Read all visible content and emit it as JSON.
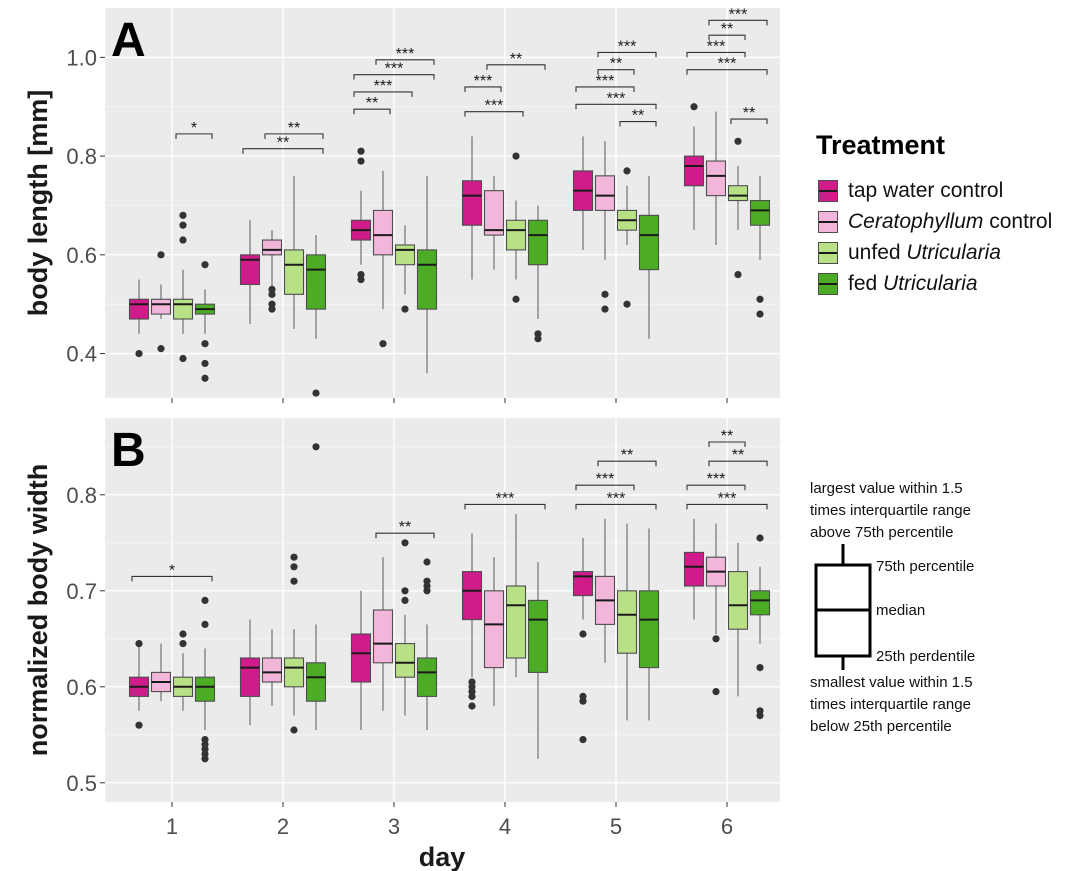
{
  "chart_data": [
    {
      "panel_label": "A",
      "type": "box",
      "ylabel": "body length [mm]",
      "xlabel": "",
      "ylim": [
        0.31,
        1.1
      ],
      "yticks": [
        0.4,
        0.6,
        0.8,
        1.0
      ],
      "ytick_labels": [
        "0.4",
        "0.6",
        "0.8",
        "1.0"
      ],
      "categories": [
        "1",
        "2",
        "3",
        "4",
        "5",
        "6"
      ],
      "grid": true,
      "series": [
        {
          "name": "tap water control",
          "color": "#d01c8b",
          "boxes": [
            {
              "low": 0.44,
              "q1": 0.47,
              "median": 0.5,
              "q3": 0.51,
              "high": 0.55,
              "outliers": [
                0.4
              ]
            },
            {
              "low": 0.46,
              "q1": 0.54,
              "median": 0.59,
              "q3": 0.6,
              "high": 0.67,
              "outliers": []
            },
            {
              "low": 0.58,
              "q1": 0.63,
              "median": 0.65,
              "q3": 0.67,
              "high": 0.73,
              "outliers": [
                0.81,
                0.79,
                0.56,
                0.55
              ]
            },
            {
              "low": 0.55,
              "q1": 0.66,
              "median": 0.72,
              "q3": 0.75,
              "high": 0.84,
              "outliers": []
            },
            {
              "low": 0.61,
              "q1": 0.69,
              "median": 0.73,
              "q3": 0.77,
              "high": 0.84,
              "outliers": []
            },
            {
              "low": 0.65,
              "q1": 0.74,
              "median": 0.78,
              "q3": 0.8,
              "high": 0.86,
              "outliers": [
                0.9
              ]
            }
          ]
        },
        {
          "name": "Ceratophyllum control",
          "color": "#f1b6da",
          "boxes": [
            {
              "low": 0.47,
              "q1": 0.48,
              "median": 0.5,
              "q3": 0.51,
              "high": 0.54,
              "outliers": [
                0.6,
                0.41
              ]
            },
            {
              "low": 0.53,
              "q1": 0.6,
              "median": 0.61,
              "q3": 0.63,
              "high": 0.65,
              "outliers": [
                0.53,
                0.52,
                0.5,
                0.49
              ]
            },
            {
              "low": 0.49,
              "q1": 0.6,
              "median": 0.64,
              "q3": 0.69,
              "high": 0.77,
              "outliers": [
                0.42
              ]
            },
            {
              "low": 0.57,
              "q1": 0.64,
              "median": 0.65,
              "q3": 0.73,
              "high": 0.76,
              "outliers": []
            },
            {
              "low": 0.59,
              "q1": 0.69,
              "median": 0.72,
              "q3": 0.76,
              "high": 0.83,
              "outliers": [
                0.52,
                0.49
              ]
            },
            {
              "low": 0.62,
              "q1": 0.72,
              "median": 0.76,
              "q3": 0.79,
              "high": 0.89,
              "outliers": []
            }
          ]
        },
        {
          "name": "unfed Utricularia",
          "color": "#b8e186",
          "boxes": [
            {
              "low": 0.44,
              "q1": 0.47,
              "median": 0.5,
              "q3": 0.51,
              "high": 0.57,
              "outliers": [
                0.68,
                0.66,
                0.63,
                0.39
              ]
            },
            {
              "low": 0.45,
              "q1": 0.52,
              "median": 0.58,
              "q3": 0.61,
              "high": 0.76,
              "outliers": []
            },
            {
              "low": 0.52,
              "q1": 0.58,
              "median": 0.61,
              "q3": 0.62,
              "high": 0.66,
              "outliers": [
                0.49
              ]
            },
            {
              "low": 0.55,
              "q1": 0.61,
              "median": 0.65,
              "q3": 0.67,
              "high": 0.71,
              "outliers": [
                0.8,
                0.51
              ]
            },
            {
              "low": 0.62,
              "q1": 0.65,
              "median": 0.67,
              "q3": 0.69,
              "high": 0.74,
              "outliers": [
                0.77,
                0.5
              ]
            },
            {
              "low": 0.65,
              "q1": 0.71,
              "median": 0.72,
              "q3": 0.74,
              "high": 0.78,
              "outliers": [
                0.83,
                0.56
              ]
            }
          ]
        },
        {
          "name": "fed Utricularia",
          "color": "#4dac26",
          "boxes": [
            {
              "low": 0.44,
              "q1": 0.48,
              "median": 0.49,
              "q3": 0.5,
              "high": 0.53,
              "outliers": [
                0.58,
                0.42,
                0.38,
                0.35
              ]
            },
            {
              "low": 0.43,
              "q1": 0.49,
              "median": 0.57,
              "q3": 0.6,
              "high": 0.64,
              "outliers": [
                0.32
              ]
            },
            {
              "low": 0.36,
              "q1": 0.49,
              "median": 0.58,
              "q3": 0.61,
              "high": 0.76,
              "outliers": []
            },
            {
              "low": 0.47,
              "q1": 0.58,
              "median": 0.64,
              "q3": 0.67,
              "high": 0.7,
              "outliers": [
                0.44,
                0.43
              ]
            },
            {
              "low": 0.43,
              "q1": 0.57,
              "median": 0.64,
              "q3": 0.68,
              "high": 0.76,
              "outliers": []
            },
            {
              "low": 0.59,
              "q1": 0.66,
              "median": 0.69,
              "q3": 0.71,
              "high": 0.76,
              "outliers": [
                0.51,
                0.48
              ]
            }
          ]
        }
      ],
      "significance": [
        {
          "day": "1",
          "from": 2,
          "to": 3,
          "level": 0.845,
          "label": "*"
        },
        {
          "day": "2",
          "from": 0,
          "to": 3,
          "level": 0.815,
          "label": "**"
        },
        {
          "day": "2",
          "from": 1,
          "to": 3,
          "level": 0.845,
          "label": "**"
        },
        {
          "day": "3",
          "from": 0,
          "to": 1,
          "level": 0.895,
          "label": "**"
        },
        {
          "day": "3",
          "from": 0,
          "to": 2,
          "level": 0.93,
          "label": "***"
        },
        {
          "day": "3",
          "from": 0,
          "to": 3,
          "level": 0.965,
          "label": "***"
        },
        {
          "day": "3",
          "from": 1,
          "to": 3,
          "level": 0.995,
          "label": "***"
        },
        {
          "day": "4",
          "from": 0,
          "to": 2,
          "level": 0.89,
          "label": "***"
        },
        {
          "day": "4",
          "from": 0,
          "to": 1,
          "level": 0.94,
          "label": "***"
        },
        {
          "day": "4",
          "from": 1,
          "to": 3,
          "level": 0.985,
          "label": "**"
        },
        {
          "day": "5",
          "from": 2,
          "to": 3,
          "level": 0.87,
          "label": "**"
        },
        {
          "day": "5",
          "from": 0,
          "to": 3,
          "level": 0.905,
          "label": "***"
        },
        {
          "day": "5",
          "from": 0,
          "to": 2,
          "level": 0.94,
          "label": "***"
        },
        {
          "day": "5",
          "from": 1,
          "to": 2,
          "level": 0.975,
          "label": "**"
        },
        {
          "day": "5",
          "from": 1,
          "to": 3,
          "level": 1.01,
          "label": "***"
        },
        {
          "day": "6",
          "from": 2,
          "to": 3,
          "level": 0.875,
          "label": "**"
        },
        {
          "day": "6",
          "from": 0,
          "to": 3,
          "level": 0.975,
          "label": "***"
        },
        {
          "day": "6",
          "from": 0,
          "to": 2,
          "level": 1.01,
          "label": "***"
        },
        {
          "day": "6",
          "from": 1,
          "to": 2,
          "level": 1.045,
          "label": "**"
        },
        {
          "day": "6",
          "from": 1,
          "to": 3,
          "level": 1.075,
          "label": "***"
        }
      ]
    },
    {
      "panel_label": "B",
      "type": "box",
      "ylabel": "normalized body width",
      "xlabel": "day",
      "ylim": [
        0.48,
        0.88
      ],
      "yticks": [
        0.5,
        0.6,
        0.7,
        0.8
      ],
      "ytick_labels": [
        "0.5",
        "0.6",
        "0.7",
        "0.8"
      ],
      "categories": [
        "1",
        "2",
        "3",
        "4",
        "5",
        "6"
      ],
      "grid": true,
      "series": [
        {
          "name": "tap water control",
          "color": "#d01c8b",
          "boxes": [
            {
              "low": 0.575,
              "q1": 0.59,
              "median": 0.6,
              "q3": 0.61,
              "high": 0.645,
              "outliers": [
                0.645,
                0.56
              ]
            },
            {
              "low": 0.56,
              "q1": 0.59,
              "median": 0.62,
              "q3": 0.63,
              "high": 0.67,
              "outliers": []
            },
            {
              "low": 0.555,
              "q1": 0.605,
              "median": 0.635,
              "q3": 0.655,
              "high": 0.7,
              "outliers": []
            },
            {
              "low": 0.61,
              "q1": 0.67,
              "median": 0.7,
              "q3": 0.72,
              "high": 0.76,
              "outliers": [
                0.605,
                0.6,
                0.595,
                0.59,
                0.58
              ]
            },
            {
              "low": 0.67,
              "q1": 0.695,
              "median": 0.715,
              "q3": 0.72,
              "high": 0.755,
              "outliers": [
                0.655,
                0.59,
                0.585,
                0.545
              ]
            },
            {
              "low": 0.67,
              "q1": 0.705,
              "median": 0.725,
              "q3": 0.74,
              "high": 0.775,
              "outliers": []
            }
          ]
        },
        {
          "name": "Ceratophyllum control",
          "color": "#f1b6da",
          "boxes": [
            {
              "low": 0.585,
              "q1": 0.595,
              "median": 0.605,
              "q3": 0.615,
              "high": 0.645,
              "outliers": []
            },
            {
              "low": 0.58,
              "q1": 0.605,
              "median": 0.615,
              "q3": 0.63,
              "high": 0.66,
              "outliers": []
            },
            {
              "low": 0.575,
              "q1": 0.625,
              "median": 0.645,
              "q3": 0.68,
              "high": 0.735,
              "outliers": []
            },
            {
              "low": 0.58,
              "q1": 0.62,
              "median": 0.665,
              "q3": 0.7,
              "high": 0.735,
              "outliers": []
            },
            {
              "low": 0.625,
              "q1": 0.665,
              "median": 0.69,
              "q3": 0.715,
              "high": 0.775,
              "outliers": []
            },
            {
              "low": 0.655,
              "q1": 0.705,
              "median": 0.72,
              "q3": 0.735,
              "high": 0.77,
              "outliers": [
                0.65,
                0.595
              ]
            }
          ]
        },
        {
          "name": "unfed Utricularia",
          "color": "#b8e186",
          "boxes": [
            {
              "low": 0.575,
              "q1": 0.59,
              "median": 0.6,
              "q3": 0.61,
              "high": 0.635,
              "outliers": [
                0.655,
                0.645
              ]
            },
            {
              "low": 0.57,
              "q1": 0.6,
              "median": 0.62,
              "q3": 0.63,
              "high": 0.66,
              "outliers": [
                0.735,
                0.725,
                0.71,
                0.555
              ]
            },
            {
              "low": 0.57,
              "q1": 0.61,
              "median": 0.625,
              "q3": 0.645,
              "high": 0.675,
              "outliers": [
                0.75,
                0.7,
                0.69
              ]
            },
            {
              "low": 0.61,
              "q1": 0.63,
              "median": 0.685,
              "q3": 0.705,
              "high": 0.78,
              "outliers": []
            },
            {
              "low": 0.565,
              "q1": 0.635,
              "median": 0.675,
              "q3": 0.7,
              "high": 0.77,
              "outliers": []
            },
            {
              "low": 0.59,
              "q1": 0.66,
              "median": 0.685,
              "q3": 0.72,
              "high": 0.75,
              "outliers": []
            }
          ]
        },
        {
          "name": "fed Utricularia",
          "color": "#4dac26",
          "boxes": [
            {
              "low": 0.555,
              "q1": 0.585,
              "median": 0.6,
              "q3": 0.61,
              "high": 0.64,
              "outliers": [
                0.69,
                0.665,
                0.545,
                0.54,
                0.535,
                0.53,
                0.525
              ]
            },
            {
              "low": 0.555,
              "q1": 0.585,
              "median": 0.61,
              "q3": 0.625,
              "high": 0.665,
              "outliers": [
                0.85
              ]
            },
            {
              "low": 0.555,
              "q1": 0.59,
              "median": 0.615,
              "q3": 0.63,
              "high": 0.665,
              "outliers": [
                0.73,
                0.71,
                0.705,
                0.7
              ]
            },
            {
              "low": 0.525,
              "q1": 0.615,
              "median": 0.67,
              "q3": 0.69,
              "high": 0.73,
              "outliers": []
            },
            {
              "low": 0.565,
              "q1": 0.62,
              "median": 0.67,
              "q3": 0.7,
              "high": 0.765,
              "outliers": []
            },
            {
              "low": 0.645,
              "q1": 0.675,
              "median": 0.69,
              "q3": 0.7,
              "high": 0.725,
              "outliers": [
                0.755,
                0.62,
                0.575,
                0.57
              ]
            }
          ]
        }
      ],
      "significance": [
        {
          "day": "1",
          "from": 0,
          "to": 3,
          "level": 0.715,
          "label": "*"
        },
        {
          "day": "3",
          "from": 1,
          "to": 3,
          "level": 0.76,
          "label": "**"
        },
        {
          "day": "4",
          "from": 0,
          "to": 3,
          "level": 0.79,
          "label": "***"
        },
        {
          "day": "5",
          "from": 0,
          "to": 3,
          "level": 0.79,
          "label": "***"
        },
        {
          "day": "5",
          "from": 0,
          "to": 2,
          "level": 0.81,
          "label": "***"
        },
        {
          "day": "5",
          "from": 1,
          "to": 3,
          "level": 0.835,
          "label": "**"
        },
        {
          "day": "6",
          "from": 0,
          "to": 3,
          "level": 0.79,
          "label": "***"
        },
        {
          "day": "6",
          "from": 0,
          "to": 2,
          "level": 0.81,
          "label": "***"
        },
        {
          "day": "6",
          "from": 1,
          "to": 3,
          "level": 0.835,
          "label": "**"
        },
        {
          "day": "6",
          "from": 1,
          "to": 2,
          "level": 0.855,
          "label": "**"
        }
      ]
    }
  ],
  "legend": {
    "title": "Treatment",
    "items": [
      {
        "pre": "tap water control",
        "italic": "",
        "post": "",
        "color": "#d01c8b"
      },
      {
        "pre": "",
        "italic": "Ceratophyllum",
        "post": " control",
        "color": "#f1b6da"
      },
      {
        "pre": "unfed ",
        "italic": "Utricularia",
        "post": "",
        "color": "#b8e186"
      },
      {
        "pre": "fed ",
        "italic": "Utricularia",
        "post": "",
        "color": "#4dac26"
      }
    ]
  },
  "boxplot_key": {
    "top_lines": [
      "largest value within 1.5",
      "times interquartile range",
      "above 75th percentile"
    ],
    "q3_label": "75th percentile",
    "median_label": "median",
    "q1_label": "25th perdentile",
    "bottom_lines": [
      "smallest value within 1.5",
      "times interquartile range",
      "below 25th percentile"
    ]
  }
}
